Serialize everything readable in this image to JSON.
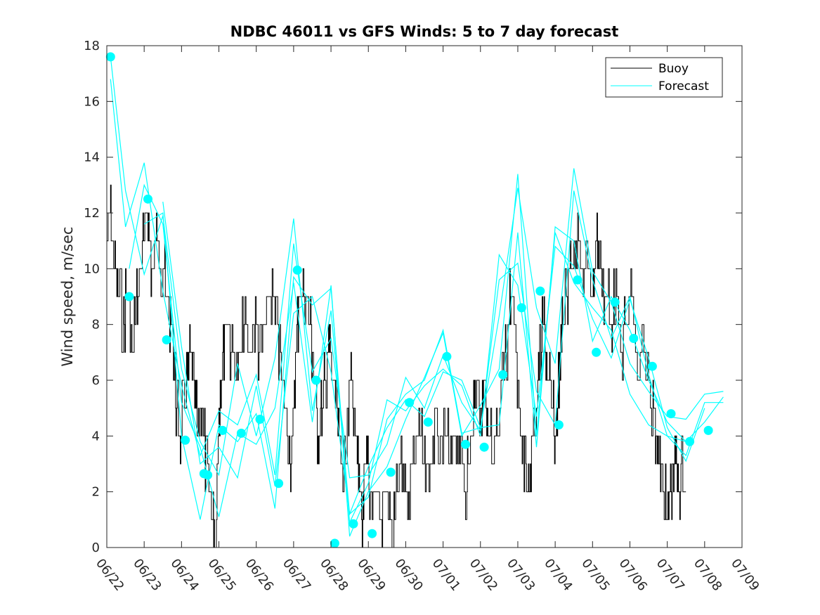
{
  "chart_data": {
    "type": "line",
    "title": "NDBC 46011 vs GFS Winds: 5 to 7 day forecast",
    "xlabel": "",
    "ylabel": "Wind speed, m/sec",
    "xlim": [
      0,
      17
    ],
    "ylim": [
      0,
      18
    ],
    "yticks": [
      0,
      2,
      4,
      6,
      8,
      10,
      12,
      14,
      16,
      18
    ],
    "xtick_labels": [
      "06/22",
      "06/23",
      "06/24",
      "06/25",
      "06/26",
      "06/27",
      "06/28",
      "06/29",
      "06/30",
      "07/01",
      "07/02",
      "07/03",
      "07/04",
      "07/05",
      "07/06",
      "07/07",
      "07/08",
      "07/09"
    ],
    "grid": false,
    "legend": {
      "position": "top-right",
      "entries": [
        "Buoy",
        "Forecast"
      ]
    },
    "colors": {
      "buoy": "#000000",
      "forecast": "#00ffff"
    },
    "buoy_anchor_points": [
      [
        0.0,
        11
      ],
      [
        0.1,
        12
      ],
      [
        0.2,
        10
      ],
      [
        0.3,
        9
      ],
      [
        0.45,
        8
      ],
      [
        0.55,
        9
      ],
      [
        0.7,
        7
      ],
      [
        0.8,
        9
      ],
      [
        0.9,
        10
      ],
      [
        1.0,
        11
      ],
      [
        1.1,
        12
      ],
      [
        1.2,
        10
      ],
      [
        1.35,
        11
      ],
      [
        1.5,
        10
      ],
      [
        1.6,
        9
      ],
      [
        1.7,
        8
      ],
      [
        1.8,
        7
      ],
      [
        1.85,
        5
      ],
      [
        1.95,
        4
      ],
      [
        2.05,
        5
      ],
      [
        2.15,
        6
      ],
      [
        2.25,
        7
      ],
      [
        2.35,
        5
      ],
      [
        2.45,
        4
      ],
      [
        2.55,
        5
      ],
      [
        2.65,
        3
      ],
      [
        2.75,
        2
      ],
      [
        2.85,
        1
      ],
      [
        2.9,
        0
      ],
      [
        3.0,
        5
      ],
      [
        3.1,
        7
      ],
      [
        3.2,
        8
      ],
      [
        3.35,
        7
      ],
      [
        3.5,
        6
      ],
      [
        3.65,
        8
      ],
      [
        3.8,
        7
      ],
      [
        3.95,
        8
      ],
      [
        4.1,
        7
      ],
      [
        4.25,
        8
      ],
      [
        4.4,
        9
      ],
      [
        4.55,
        8
      ],
      [
        4.7,
        6
      ],
      [
        4.85,
        4
      ],
      [
        4.95,
        3
      ],
      [
        5.05,
        7
      ],
      [
        5.15,
        9
      ],
      [
        5.3,
        9
      ],
      [
        5.45,
        8
      ],
      [
        5.55,
        6
      ],
      [
        5.65,
        4
      ],
      [
        5.75,
        5
      ],
      [
        5.85,
        6
      ],
      [
        5.95,
        7
      ],
      [
        6.05,
        6
      ],
      [
        6.15,
        5
      ],
      [
        6.25,
        3
      ],
      [
        6.35,
        3
      ],
      [
        6.45,
        5
      ],
      [
        6.55,
        6
      ],
      [
        6.65,
        4
      ],
      [
        6.75,
        2
      ],
      [
        6.85,
        1
      ],
      [
        6.95,
        3
      ],
      [
        7.05,
        2
      ],
      [
        7.2,
        2
      ],
      [
        7.35,
        1
      ],
      [
        7.45,
        2
      ],
      [
        7.55,
        1
      ],
      [
        7.65,
        0
      ],
      [
        7.75,
        2
      ],
      [
        7.9,
        3
      ],
      [
        8.05,
        2
      ],
      [
        8.2,
        3
      ],
      [
        8.35,
        4
      ],
      [
        8.5,
        3
      ],
      [
        8.65,
        3
      ],
      [
        8.8,
        4
      ],
      [
        8.95,
        3
      ],
      [
        9.05,
        4
      ],
      [
        9.2,
        3
      ],
      [
        9.35,
        4
      ],
      [
        9.5,
        3
      ],
      [
        9.6,
        2
      ],
      [
        9.7,
        3
      ],
      [
        9.8,
        5
      ],
      [
        9.9,
        6
      ],
      [
        10.0,
        5
      ],
      [
        10.1,
        6
      ],
      [
        10.2,
        4
      ],
      [
        10.35,
        3
      ],
      [
        10.5,
        4
      ],
      [
        10.6,
        6
      ],
      [
        10.7,
        7
      ],
      [
        10.8,
        9
      ],
      [
        10.9,
        8
      ],
      [
        11.0,
        6
      ],
      [
        11.1,
        4
      ],
      [
        11.2,
        3
      ],
      [
        11.3,
        2
      ],
      [
        11.4,
        4
      ],
      [
        11.5,
        5
      ],
      [
        11.6,
        7
      ],
      [
        11.7,
        8
      ],
      [
        11.8,
        6
      ],
      [
        11.9,
        5
      ],
      [
        12.0,
        4
      ],
      [
        12.1,
        6
      ],
      [
        12.2,
        8
      ],
      [
        12.3,
        9
      ],
      [
        12.4,
        10
      ],
      [
        12.55,
        11
      ],
      [
        12.7,
        10
      ],
      [
        12.85,
        10
      ],
      [
        13.0,
        9
      ],
      [
        13.1,
        11
      ],
      [
        13.2,
        10
      ],
      [
        13.35,
        9
      ],
      [
        13.5,
        8
      ],
      [
        13.6,
        9
      ],
      [
        13.75,
        7
      ],
      [
        13.9,
        8
      ],
      [
        14.05,
        9
      ],
      [
        14.2,
        6
      ],
      [
        14.35,
        7
      ],
      [
        14.5,
        6
      ],
      [
        14.6,
        5
      ],
      [
        14.7,
        4
      ],
      [
        14.8,
        3
      ],
      [
        14.9,
        2
      ],
      [
        15.0,
        1
      ],
      [
        15.1,
        2
      ],
      [
        15.2,
        3
      ],
      [
        15.3,
        2
      ],
      [
        15.4,
        3
      ],
      [
        15.5,
        2
      ]
    ],
    "forecast_markers": [
      [
        0.1,
        17.6
      ],
      [
        0.6,
        9.0
      ],
      [
        1.1,
        12.5
      ],
      [
        1.6,
        7.45
      ],
      [
        2.1,
        3.85
      ],
      [
        2.6,
        2.65
      ],
      [
        2.7,
        2.6
      ],
      [
        3.1,
        4.2
      ],
      [
        3.6,
        4.1
      ],
      [
        4.1,
        4.6
      ],
      [
        4.6,
        2.3
      ],
      [
        5.1,
        9.95
      ],
      [
        5.6,
        6.0
      ],
      [
        6.1,
        0.15
      ],
      [
        6.6,
        0.85
      ],
      [
        7.1,
        0.5
      ],
      [
        7.6,
        2.7
      ],
      [
        8.1,
        5.2
      ],
      [
        8.6,
        4.5
      ],
      [
        9.1,
        6.85
      ],
      [
        9.6,
        3.7
      ],
      [
        10.1,
        3.6
      ],
      [
        10.6,
        6.2
      ],
      [
        11.1,
        8.6
      ],
      [
        11.6,
        9.2
      ],
      [
        12.1,
        4.4
      ],
      [
        12.6,
        9.6
      ],
      [
        13.1,
        7.0
      ],
      [
        13.6,
        8.8
      ],
      [
        14.1,
        7.5
      ],
      [
        14.6,
        6.5
      ],
      [
        15.1,
        4.8
      ],
      [
        15.6,
        3.8
      ],
      [
        16.1,
        4.2
      ]
    ],
    "forecast_series": [
      {
        "points": [
          [
            0.1,
            17.6
          ],
          [
            0.5,
            12.8
          ],
          [
            1.0,
            9.8
          ],
          [
            1.5,
            11.9
          ],
          [
            2.0,
            6.4
          ],
          [
            2.5,
            3.8
          ],
          [
            3.0,
            2.6
          ],
          [
            3.5,
            6.6
          ],
          [
            4.0,
            4.0
          ],
          [
            4.5,
            6.8
          ],
          [
            5.0,
            11.8
          ],
          [
            5.5,
            4.9
          ],
          [
            6.0,
            8.5
          ],
          [
            6.5,
            1.2
          ],
          [
            7.0,
            1.8
          ],
          [
            7.5,
            4.6
          ],
          [
            8.0,
            5.5
          ],
          [
            8.5,
            6.0
          ],
          [
            9.0,
            7.8
          ],
          [
            9.5,
            4.1
          ],
          [
            10.0,
            4.3
          ],
          [
            10.5,
            8.3
          ],
          [
            11.0,
            12.9
          ],
          [
            11.5,
            8.6
          ],
          [
            12.0,
            6.6
          ],
          [
            12.5,
            13.6
          ],
          [
            13.0,
            9.9
          ],
          [
            13.5,
            8.8
          ],
          [
            14.0,
            6.6
          ],
          [
            14.5,
            5.6
          ],
          [
            15.0,
            4.7
          ],
          [
            15.5,
            4.6
          ],
          [
            16.0,
            5.5
          ],
          [
            16.5,
            5.6
          ]
        ]
      },
      {
        "points": [
          [
            0.1,
            16.8
          ],
          [
            0.5,
            11.5
          ],
          [
            1.0,
            13.8
          ],
          [
            1.5,
            9.2
          ],
          [
            2.0,
            5.8
          ],
          [
            2.5,
            3.3
          ],
          [
            3.0,
            4.9
          ],
          [
            3.5,
            4.4
          ],
          [
            4.0,
            6.2
          ],
          [
            4.5,
            2.6
          ],
          [
            5.0,
            10.9
          ],
          [
            5.5,
            6.3
          ],
          [
            6.0,
            7.5
          ],
          [
            6.5,
            2.5
          ],
          [
            7.0,
            2.6
          ],
          [
            7.5,
            3.7
          ],
          [
            8.0,
            6.1
          ],
          [
            8.5,
            5.0
          ],
          [
            9.0,
            6.9
          ],
          [
            9.5,
            5.2
          ],
          [
            10.0,
            4.2
          ],
          [
            10.5,
            9.6
          ],
          [
            11.0,
            10.2
          ],
          [
            11.5,
            5.6
          ],
          [
            12.0,
            4.4
          ],
          [
            12.5,
            12.8
          ],
          [
            13.0,
            9.6
          ],
          [
            13.5,
            7.5
          ],
          [
            14.0,
            9.0
          ],
          [
            14.5,
            6.2
          ],
          [
            15.0,
            4.0
          ],
          [
            15.5,
            3.8
          ],
          [
            16.0,
            4.5
          ],
          [
            16.5,
            5.4
          ]
        ]
      },
      {
        "points": [
          [
            0.6,
            10.0
          ],
          [
            1.0,
            13.0
          ],
          [
            1.5,
            11.6
          ],
          [
            2.0,
            5.2
          ],
          [
            2.5,
            3.6
          ],
          [
            3.0,
            1.1
          ],
          [
            3.5,
            4.1
          ],
          [
            4.0,
            3.7
          ],
          [
            4.5,
            5.0
          ],
          [
            5.0,
            9.5
          ],
          [
            5.5,
            4.5
          ],
          [
            6.0,
            9.4
          ],
          [
            6.5,
            0.4
          ],
          [
            7.0,
            2.0
          ],
          [
            7.5,
            2.9
          ],
          [
            8.0,
            4.6
          ],
          [
            8.5,
            6.1
          ],
          [
            9.0,
            7.7
          ],
          [
            9.5,
            4.0
          ],
          [
            10.0,
            5.1
          ],
          [
            10.5,
            6.4
          ],
          [
            11.0,
            13.4
          ],
          [
            11.5,
            4.0
          ],
          [
            12.0,
            11.3
          ],
          [
            12.5,
            9.5
          ],
          [
            13.0,
            8.6
          ],
          [
            13.5,
            7.8
          ],
          [
            14.0,
            5.5
          ],
          [
            14.5,
            4.4
          ],
          [
            15.0,
            4.0
          ],
          [
            15.5,
            3.3
          ],
          [
            16.0,
            5.2
          ],
          [
            16.5,
            5.2
          ]
        ]
      },
      {
        "points": [
          [
            1.0,
            11.6
          ],
          [
            1.5,
            12.0
          ],
          [
            2.0,
            4.0
          ],
          [
            2.5,
            1.0
          ],
          [
            3.0,
            4.4
          ],
          [
            3.5,
            3.8
          ],
          [
            4.0,
            4.8
          ],
          [
            4.5,
            1.4
          ],
          [
            5.0,
            9.7
          ],
          [
            5.5,
            8.7
          ],
          [
            6.0,
            9.3
          ],
          [
            6.5,
            0.9
          ],
          [
            7.0,
            2.3
          ],
          [
            7.5,
            5.3
          ],
          [
            8.0,
            4.9
          ],
          [
            8.5,
            5.8
          ],
          [
            9.0,
            6.4
          ],
          [
            9.5,
            5.8
          ],
          [
            10.0,
            4.0
          ],
          [
            10.5,
            10.5
          ],
          [
            11.0,
            9.4
          ],
          [
            11.5,
            4.7
          ],
          [
            12.0,
            10.8
          ],
          [
            12.5,
            10.1
          ],
          [
            13.0,
            8.2
          ],
          [
            13.5,
            6.8
          ],
          [
            14.0,
            8.9
          ],
          [
            14.5,
            6.8
          ],
          [
            15.0,
            4.3
          ],
          [
            15.5,
            3.1
          ],
          [
            16.0,
            5.0
          ]
        ]
      },
      {
        "points": [
          [
            1.5,
            12.4
          ],
          [
            2.0,
            7.2
          ],
          [
            2.5,
            3.0
          ],
          [
            3.0,
            3.6
          ],
          [
            3.5,
            2.5
          ],
          [
            4.0,
            5.8
          ],
          [
            4.5,
            2.2
          ],
          [
            5.0,
            8.4
          ],
          [
            5.5,
            9.0
          ],
          [
            6.0,
            6.3
          ],
          [
            6.5,
            1.2
          ],
          [
            7.0,
            2.9
          ],
          [
            7.5,
            4.3
          ],
          [
            8.0,
            5.3
          ],
          [
            8.5,
            4.7
          ],
          [
            9.0,
            6.3
          ],
          [
            9.5,
            6.0
          ],
          [
            10.0,
            4.3
          ],
          [
            10.5,
            4.4
          ],
          [
            11.0,
            11.3
          ],
          [
            11.5,
            3.6
          ],
          [
            12.0,
            11.5
          ],
          [
            12.5,
            11.0
          ],
          [
            13.0,
            7.4
          ],
          [
            13.5,
            9.0
          ],
          [
            14.0,
            7.8
          ],
          [
            14.5,
            6.0
          ],
          [
            15.0,
            4.5
          ],
          [
            15.5,
            3.8
          ]
        ]
      }
    ]
  }
}
